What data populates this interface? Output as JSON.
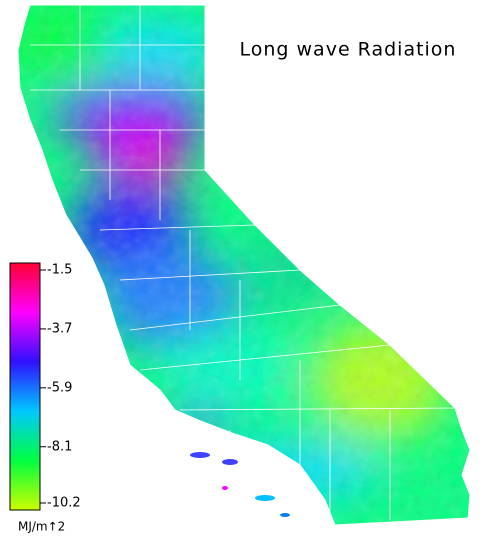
{
  "title": "Long wave Radiation",
  "colorbar": {
    "ticks": [
      -1.5,
      -3.7,
      -5.9,
      -8.1,
      -10.2
    ],
    "unit": "MJ/m↑2",
    "colors": [
      "#ff0033",
      "#ff00ff",
      "#3010ff",
      "#00c8ff",
      "#00ff40",
      "#ccff00"
    ]
  }
}
